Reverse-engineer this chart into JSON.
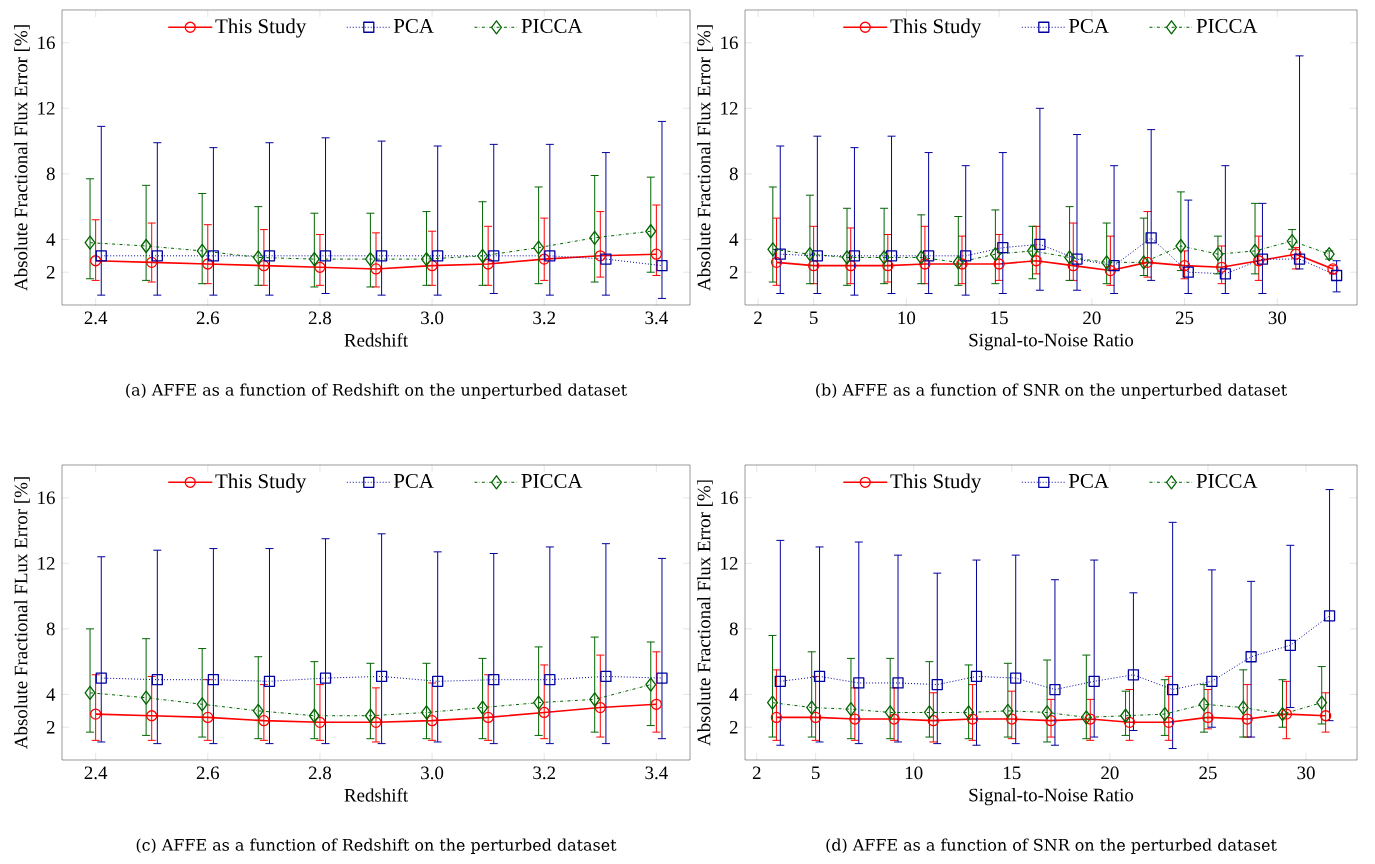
{
  "chart_data": [
    {
      "type": "line",
      "xlabel": "Redshift",
      "ylabel": "Absolute Fractional Flux Error [%]",
      "xlim": [
        2.34,
        3.46
      ],
      "ylim": [
        0,
        18
      ],
      "xticks": [
        2.4,
        2.6,
        2.8,
        {
          "value": 3.0,
          "label": "3.0"
        },
        3.2,
        3.4
      ],
      "yticks": [
        2,
        4,
        8,
        12,
        16
      ],
      "legend": "top",
      "annotations": [
        "(a) AFFE as a function of Redshift on the unperturbed dataset"
      ],
      "series": [
        {
          "name": "This Study",
          "color": "#ff0000",
          "marker": "circle",
          "line_style": "solid",
          "x": [
            2.4,
            2.5,
            2.6,
            2.7,
            2.8,
            2.9,
            3.0,
            3.1,
            3.2,
            3.3,
            3.4
          ],
          "values": [
            2.7,
            2.6,
            2.5,
            2.4,
            2.3,
            2.2,
            2.4,
            2.5,
            2.8,
            3.0,
            3.1
          ],
          "errors": [
            [
              1.5,
              5.2
            ],
            [
              1.4,
              5.0
            ],
            [
              1.3,
              4.9
            ],
            [
              1.2,
              4.6
            ],
            [
              1.2,
              4.3
            ],
            [
              1.1,
              4.4
            ],
            [
              1.2,
              4.5
            ],
            [
              1.2,
              4.8
            ],
            [
              1.5,
              5.3
            ],
            [
              1.7,
              5.7
            ],
            [
              1.8,
              6.1
            ]
          ]
        },
        {
          "name": "PCA",
          "color": "#0000a0",
          "marker": "square",
          "line_style": "dotted",
          "x": [
            2.41,
            2.51,
            2.61,
            2.71,
            2.81,
            2.91,
            3.01,
            3.11,
            3.21,
            3.31,
            3.41
          ],
          "values": [
            3.0,
            3.0,
            3.0,
            3.0,
            3.0,
            3.0,
            3.0,
            3.0,
            3.0,
            2.8,
            2.4
          ],
          "errors": [
            [
              0.6,
              10.9
            ],
            [
              0.6,
              9.9
            ],
            [
              0.6,
              9.6
            ],
            [
              0.6,
              9.9
            ],
            [
              0.7,
              10.2
            ],
            [
              0.6,
              10.0
            ],
            [
              0.6,
              9.7
            ],
            [
              0.7,
              9.8
            ],
            [
              0.6,
              9.8
            ],
            [
              0.6,
              9.3
            ],
            [
              0.4,
              11.2
            ]
          ]
        },
        {
          "name": "PICCA",
          "color": "#006400",
          "marker": "diamond",
          "line_style": "dashdot",
          "x": [
            2.39,
            2.49,
            2.59,
            2.69,
            2.79,
            2.89,
            2.99,
            3.09,
            3.19,
            3.29,
            3.39
          ],
          "values": [
            3.8,
            3.6,
            3.3,
            2.9,
            2.8,
            2.8,
            2.8,
            3.0,
            3.5,
            4.1,
            4.5
          ],
          "errors": [
            [
              1.6,
              7.7
            ],
            [
              1.5,
              7.3
            ],
            [
              1.3,
              6.8
            ],
            [
              1.2,
              6.0
            ],
            [
              1.1,
              5.6
            ],
            [
              1.1,
              5.6
            ],
            [
              1.2,
              5.7
            ],
            [
              1.2,
              6.3
            ],
            [
              1.3,
              7.2
            ],
            [
              1.4,
              7.9
            ],
            [
              2.0,
              7.8
            ]
          ]
        }
      ]
    },
    {
      "type": "line",
      "xlabel": "Signal-to-Noise Ratio",
      "ylabel": "Absolute Fractional Flux Error [%]",
      "xlim": [
        1.3,
        34.3
      ],
      "ylim": [
        0,
        18
      ],
      "xticks": [
        2,
        5,
        10,
        15,
        20,
        25,
        30
      ],
      "yticks": [
        2,
        4,
        8,
        12,
        16
      ],
      "legend": "top",
      "annotations": [
        "(b) AFFE as a function of SNR on the unperturbed dataset"
      ],
      "series": [
        {
          "name": "This Study",
          "color": "#ff0000",
          "marker": "circle",
          "line_style": "solid",
          "x": [
            3,
            5,
            7,
            9,
            11,
            13,
            15,
            17,
            19,
            21,
            23,
            25,
            27,
            29,
            31,
            33
          ],
          "values": [
            2.6,
            2.4,
            2.4,
            2.4,
            2.5,
            2.5,
            2.5,
            2.7,
            2.4,
            2.1,
            2.6,
            2.4,
            2.3,
            2.7,
            3.1,
            2.2
          ],
          "errors": [
            [
              1.2,
              5.3
            ],
            [
              1.3,
              4.8
            ],
            [
              1.3,
              4.7
            ],
            [
              1.4,
              4.3
            ],
            [
              1.3,
              4.8
            ],
            [
              1.3,
              4.2
            ],
            [
              1.5,
              4.3
            ],
            [
              1.9,
              4.8
            ],
            [
              1.5,
              5.0
            ],
            [
              1.2,
              4.2
            ],
            [
              1.7,
              5.7
            ],
            [
              1.6,
              3.3
            ],
            [
              1.3,
              3.6
            ],
            [
              1.5,
              4.2
            ],
            [
              2.2,
              3.5
            ],
            [
              1.9,
              2.4
            ]
          ]
        },
        {
          "name": "PCA",
          "color": "#0000a0",
          "marker": "square",
          "line_style": "dotted",
          "x": [
            3.2,
            5.2,
            7.2,
            9.2,
            11.2,
            13.2,
            15.2,
            17.2,
            19.2,
            21.2,
            23.2,
            25.2,
            27.2,
            29.2,
            31.2,
            33.2
          ],
          "values": [
            3.1,
            3.0,
            3.0,
            3.0,
            3.0,
            3.0,
            3.5,
            3.7,
            2.8,
            2.4,
            4.1,
            2.0,
            1.9,
            2.8,
            2.8,
            1.8
          ],
          "errors": [
            [
              0.7,
              9.7
            ],
            [
              0.7,
              10.3
            ],
            [
              0.6,
              9.6
            ],
            [
              0.7,
              10.3
            ],
            [
              0.7,
              9.3
            ],
            [
              0.6,
              8.5
            ],
            [
              0.7,
              9.3
            ],
            [
              0.9,
              12.0
            ],
            [
              0.9,
              10.4
            ],
            [
              0.7,
              8.5
            ],
            [
              1.5,
              10.7
            ],
            [
              0.7,
              6.4
            ],
            [
              0.7,
              8.5
            ],
            [
              0.7,
              6.2
            ],
            [
              2.2,
              15.2
            ],
            [
              0.8,
              2.7
            ]
          ]
        },
        {
          "name": "PICCA",
          "color": "#006400",
          "marker": "diamond",
          "line_style": "dashdot",
          "x": [
            2.8,
            4.8,
            6.8,
            8.8,
            10.8,
            12.8,
            14.8,
            16.8,
            18.8,
            20.8,
            22.8,
            24.8,
            26.8,
            28.8,
            30.8,
            32.8
          ],
          "values": [
            3.4,
            3.1,
            2.9,
            2.9,
            2.9,
            2.6,
            3.1,
            3.3,
            2.9,
            2.6,
            2.6,
            3.6,
            3.1,
            3.3,
            3.9,
            3.1
          ],
          "errors": [
            [
              1.4,
              7.2
            ],
            [
              1.3,
              6.7
            ],
            [
              1.2,
              5.9
            ],
            [
              1.3,
              5.9
            ],
            [
              1.3,
              5.5
            ],
            [
              1.2,
              5.4
            ],
            [
              1.3,
              5.8
            ],
            [
              1.6,
              4.8
            ],
            [
              1.5,
              6.0
            ],
            [
              1.3,
              5.0
            ],
            [
              1.8,
              5.3
            ],
            [
              2.1,
              6.9
            ],
            [
              1.9,
              4.2
            ],
            [
              1.9,
              6.2
            ],
            [
              3.4,
              4.6
            ],
            [
              2.8,
              3.3
            ]
          ]
        }
      ]
    },
    {
      "type": "line",
      "xlabel": "Redshift",
      "ylabel": "Absolute Fractional FLux Error [%]",
      "xlim": [
        2.34,
        3.46
      ],
      "ylim": [
        0,
        18
      ],
      "xticks": [
        2.4,
        2.6,
        2.8,
        {
          "value": 3.0,
          "label": "3.0"
        },
        3.2,
        3.4
      ],
      "yticks": [
        2,
        4,
        8,
        12,
        16
      ],
      "legend": "top",
      "annotations": [
        "(c) AFFE as a function of Redshift on the perturbed dataset"
      ],
      "series": [
        {
          "name": "This Study",
          "color": "#ff0000",
          "marker": "circle",
          "line_style": "solid",
          "x": [
            2.4,
            2.5,
            2.6,
            2.7,
            2.8,
            2.9,
            3.0,
            3.1,
            3.2,
            3.3,
            3.4
          ],
          "values": [
            2.8,
            2.7,
            2.6,
            2.4,
            2.3,
            2.3,
            2.4,
            2.6,
            2.9,
            3.2,
            3.4
          ],
          "errors": [
            [
              1.2,
              5.2
            ],
            [
              1.2,
              5.1
            ],
            [
              1.2,
              4.9
            ],
            [
              1.2,
              4.6
            ],
            [
              1.2,
              4.6
            ],
            [
              1.1,
              4.4
            ],
            [
              1.2,
              4.7
            ],
            [
              1.2,
              5.2
            ],
            [
              1.3,
              5.8
            ],
            [
              1.4,
              6.4
            ],
            [
              1.7,
              6.6
            ]
          ]
        },
        {
          "name": "PCA",
          "color": "#0000a0",
          "marker": "square",
          "line_style": "dotted",
          "x": [
            2.41,
            2.51,
            2.61,
            2.71,
            2.81,
            2.91,
            3.01,
            3.11,
            3.21,
            3.31,
            3.41
          ],
          "values": [
            5.0,
            4.9,
            4.9,
            4.8,
            5.0,
            5.1,
            4.8,
            4.9,
            4.9,
            5.1,
            5.0
          ],
          "errors": [
            [
              1.1,
              12.4
            ],
            [
              1.0,
              12.8
            ],
            [
              1.0,
              12.9
            ],
            [
              1.0,
              12.9
            ],
            [
              1.0,
              13.5
            ],
            [
              1.0,
              13.8
            ],
            [
              1.1,
              12.7
            ],
            [
              1.0,
              12.6
            ],
            [
              1.0,
              13.0
            ],
            [
              1.0,
              13.2
            ],
            [
              1.3,
              12.3
            ]
          ]
        },
        {
          "name": "PICCA",
          "color": "#006400",
          "marker": "diamond",
          "line_style": "dashdot",
          "x": [
            2.39,
            2.49,
            2.59,
            2.69,
            2.79,
            2.89,
            2.99,
            3.09,
            3.19,
            3.29,
            3.39
          ],
          "values": [
            4.1,
            3.8,
            3.4,
            3.0,
            2.7,
            2.7,
            2.9,
            3.2,
            3.5,
            3.7,
            4.6
          ],
          "errors": [
            [
              1.7,
              8.0
            ],
            [
              1.5,
              7.4
            ],
            [
              1.4,
              6.8
            ],
            [
              1.3,
              6.3
            ],
            [
              1.3,
              6.0
            ],
            [
              1.3,
              5.9
            ],
            [
              1.3,
              5.9
            ],
            [
              1.3,
              6.2
            ],
            [
              1.5,
              6.9
            ],
            [
              1.7,
              7.5
            ],
            [
              2.1,
              7.2
            ]
          ]
        }
      ]
    },
    {
      "type": "line",
      "xlabel": "Signal-to-Noise Ratio",
      "ylabel": "Absolute Fractional Flux Error [%]",
      "xlim": [
        1.4,
        32.6
      ],
      "ylim": [
        0,
        18
      ],
      "xticks": [
        2,
        5,
        10,
        15,
        20,
        25,
        30
      ],
      "yticks": [
        2,
        4,
        8,
        12,
        16
      ],
      "legend": "top",
      "annotations": [
        "(d) AFFE as a function of SNR on the perturbed dataset"
      ],
      "series": [
        {
          "name": "This Study",
          "color": "#ff0000",
          "marker": "circle",
          "line_style": "solid",
          "x": [
            3,
            5,
            7,
            9,
            11,
            13,
            15,
            17,
            19,
            21,
            23,
            25,
            27,
            29,
            31
          ],
          "values": [
            2.6,
            2.6,
            2.5,
            2.5,
            2.4,
            2.5,
            2.5,
            2.4,
            2.5,
            2.3,
            2.3,
            2.6,
            2.5,
            2.8,
            2.7
          ],
          "errors": [
            [
              1.2,
              5.5
            ],
            [
              1.2,
              5.1
            ],
            [
              1.2,
              4.4
            ],
            [
              1.2,
              4.4
            ],
            [
              1.1,
              4.1
            ],
            [
              1.2,
              4.6
            ],
            [
              1.3,
              4.2
            ],
            [
              1.4,
              3.7
            ],
            [
              1.2,
              3.7
            ],
            [
              1.2,
              4.3
            ],
            [
              1.2,
              5.1
            ],
            [
              1.9,
              4.3
            ],
            [
              1.4,
              4.6
            ],
            [
              1.3,
              4.8
            ],
            [
              1.7,
              4.1
            ]
          ]
        },
        {
          "name": "PCA",
          "color": "#0000a0",
          "marker": "square",
          "line_style": "dotted",
          "x": [
            3.2,
            5.2,
            7.2,
            9.2,
            11.2,
            13.2,
            15.2,
            17.2,
            19.2,
            21.2,
            23.2,
            25.2,
            27.2,
            29.2,
            31.2
          ],
          "values": [
            4.8,
            5.1,
            4.7,
            4.7,
            4.6,
            5.1,
            5.0,
            4.3,
            4.8,
            5.2,
            4.3,
            4.8,
            6.3,
            7.0,
            8.8
          ],
          "errors": [
            [
              0.9,
              13.4
            ],
            [
              1.1,
              13.0
            ],
            [
              1.0,
              13.3
            ],
            [
              1.1,
              12.5
            ],
            [
              1.0,
              11.4
            ],
            [
              0.9,
              12.2
            ],
            [
              1.0,
              12.5
            ],
            [
              0.9,
              11.0
            ],
            [
              1.4,
              12.2
            ],
            [
              1.8,
              10.2
            ],
            [
              0.7,
              14.5
            ],
            [
              2.0,
              11.6
            ],
            [
              1.4,
              10.9
            ],
            [
              3.2,
              13.1
            ],
            [
              2.4,
              16.5
            ]
          ]
        },
        {
          "name": "PICCA",
          "color": "#006400",
          "marker": "diamond",
          "line_style": "dashdot",
          "x": [
            2.8,
            4.8,
            6.8,
            8.8,
            10.8,
            12.8,
            14.8,
            16.8,
            18.8,
            20.8,
            22.8,
            24.8,
            26.8,
            28.8,
            30.8
          ],
          "values": [
            3.5,
            3.2,
            3.1,
            2.9,
            2.9,
            2.9,
            3.0,
            2.9,
            2.6,
            2.7,
            2.8,
            3.4,
            3.2,
            2.8,
            3.5
          ],
          "errors": [
            [
              1.4,
              7.6
            ],
            [
              1.4,
              6.6
            ],
            [
              1.3,
              6.2
            ],
            [
              1.3,
              6.2
            ],
            [
              1.4,
              6.0
            ],
            [
              1.3,
              5.8
            ],
            [
              1.4,
              5.9
            ],
            [
              1.1,
              6.1
            ],
            [
              1.3,
              6.4
            ],
            [
              1.5,
              4.2
            ],
            [
              1.5,
              4.9
            ],
            [
              1.7,
              4.6
            ],
            [
              1.4,
              5.5
            ],
            [
              2.0,
              4.9
            ],
            [
              2.2,
              5.7
            ]
          ]
        }
      ]
    }
  ]
}
